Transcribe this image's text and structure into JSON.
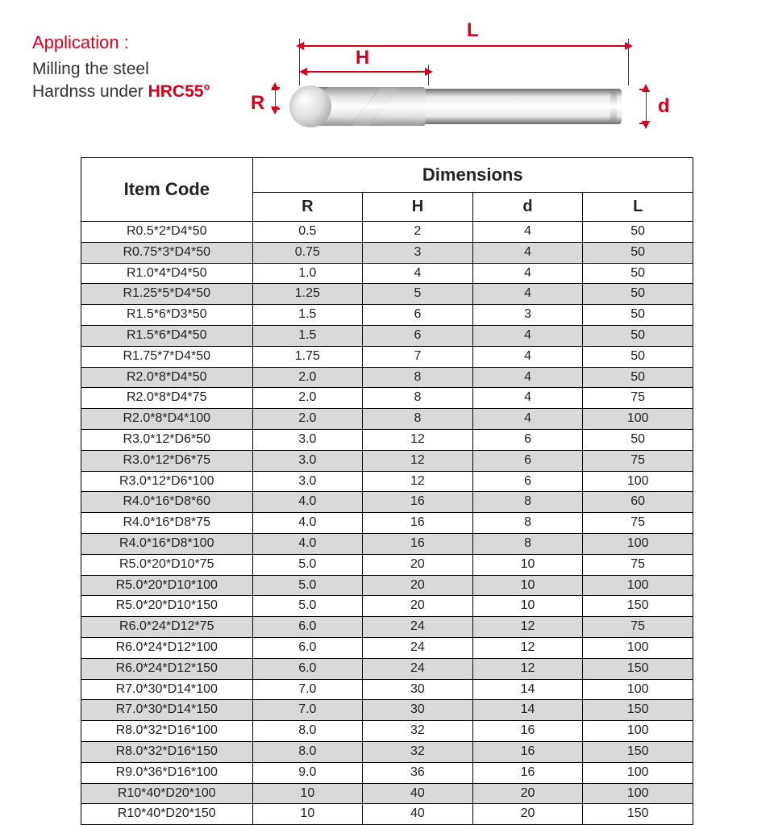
{
  "application": {
    "title": "Application :",
    "line1": "Milling the steel",
    "line2_prefix": "Hardnss under ",
    "hrc": "HRC55°"
  },
  "diagram": {
    "labels": {
      "R": "R",
      "H": "H",
      "L": "L",
      "d": "d"
    },
    "colors": {
      "accent": "#d6001c"
    }
  },
  "table": {
    "header": {
      "item_code": "Item Code",
      "dimensions": "Dimensions",
      "R": "R",
      "H": "H",
      "d": "d",
      "L": "L"
    },
    "stripe_color": "#d9d9d9",
    "border_color": "#000000",
    "text_color": "#222222",
    "header_fontsize": 22,
    "cell_fontsize": 16,
    "column_widths_pct": [
      28,
      18,
      18,
      18,
      18
    ],
    "columns": [
      "code",
      "R",
      "H",
      "d",
      "L"
    ],
    "rows": [
      [
        "R0.5*2*D4*50",
        "0.5",
        "2",
        "4",
        "50"
      ],
      [
        "R0.75*3*D4*50",
        "0.75",
        "3",
        "4",
        "50"
      ],
      [
        "R1.0*4*D4*50",
        "1.0",
        "4",
        "4",
        "50"
      ],
      [
        "R1.25*5*D4*50",
        "1.25",
        "5",
        "4",
        "50"
      ],
      [
        "R1.5*6*D3*50",
        "1.5",
        "6",
        "3",
        "50"
      ],
      [
        "R1.5*6*D4*50",
        "1.5",
        "6",
        "4",
        "50"
      ],
      [
        "R1.75*7*D4*50",
        "1.75",
        "7",
        "4",
        "50"
      ],
      [
        "R2.0*8*D4*50",
        "2.0",
        "8",
        "4",
        "50"
      ],
      [
        "R2.0*8*D4*75",
        "2.0",
        "8",
        "4",
        "75"
      ],
      [
        "R2.0*8*D4*100",
        "2.0",
        "8",
        "4",
        "100"
      ],
      [
        "R3.0*12*D6*50",
        "3.0",
        "12",
        "6",
        "50"
      ],
      [
        "R3.0*12*D6*75",
        "3.0",
        "12",
        "6",
        "75"
      ],
      [
        "R3.0*12*D6*100",
        "3.0",
        "12",
        "6",
        "100"
      ],
      [
        "R4.0*16*D8*60",
        "4.0",
        "16",
        "8",
        "60"
      ],
      [
        "R4.0*16*D8*75",
        "4.0",
        "16",
        "8",
        "75"
      ],
      [
        "R4.0*16*D8*100",
        "4.0",
        "16",
        "8",
        "100"
      ],
      [
        "R5.0*20*D10*75",
        "5.0",
        "20",
        "10",
        "75"
      ],
      [
        "R5.0*20*D10*100",
        "5.0",
        "20",
        "10",
        "100"
      ],
      [
        "R5.0*20*D10*150",
        "5.0",
        "20",
        "10",
        "150"
      ],
      [
        "R6.0*24*D12*75",
        "6.0",
        "24",
        "12",
        "75"
      ],
      [
        "R6.0*24*D12*100",
        "6.0",
        "24",
        "12",
        "100"
      ],
      [
        "R6.0*24*D12*150",
        "6.0",
        "24",
        "12",
        "150"
      ],
      [
        "R7.0*30*D14*100",
        "7.0",
        "30",
        "14",
        "100"
      ],
      [
        "R7.0*30*D14*150",
        "7.0",
        "30",
        "14",
        "150"
      ],
      [
        "R8.0*32*D16*100",
        "8.0",
        "32",
        "16",
        "100"
      ],
      [
        "R8.0*32*D16*150",
        "8.0",
        "32",
        "16",
        "150"
      ],
      [
        "R9.0*36*D16*100",
        "9.0",
        "36",
        "16",
        "100"
      ],
      [
        "R10*40*D20*100",
        "10",
        "40",
        "20",
        "100"
      ],
      [
        "R10*40*D20*150",
        "10",
        "40",
        "20",
        "150"
      ]
    ]
  }
}
